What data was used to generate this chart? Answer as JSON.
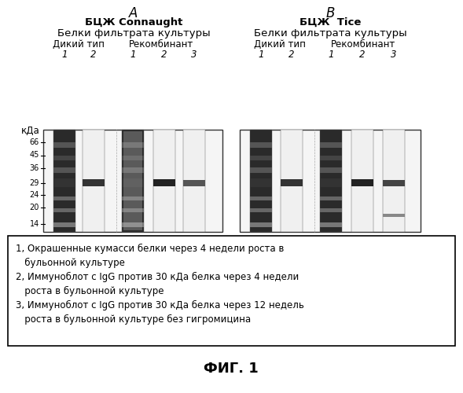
{
  "title_A": "А",
  "title_B": "В",
  "subtitle_A1": "БЦЖ Connaught",
  "subtitle_A2": "Белки фильтрата культуры",
  "subtitle_B1": "БЦЖ  Tice",
  "subtitle_B2": "Белки фильтрата культуры",
  "wild_type_label": "Дикий тип",
  "recombinant_label": "Рекомбинант",
  "kda_label": "кДа",
  "kda_values": [
    "66",
    "45",
    "36",
    "29",
    "24",
    "20",
    "14"
  ],
  "lane_labels": [
    "1",
    "2",
    "1",
    "2",
    "3"
  ],
  "legend_lines": [
    "1, Окрашенные кумасси белки через 4 недели роста в",
    "   бульонной культуре",
    "2, Иммуноблот с IgG против 30 кДа белка через 4 недели",
    "   роста в бульонной культуре",
    "3, Иммуноблот с IgG против 30 кДа белка через 12 недель",
    "   роста в бульонной культуре без гигромицина"
  ],
  "fig_label": "ФИГ. 1",
  "bg_color": "#ffffff",
  "text_color": "#000000"
}
